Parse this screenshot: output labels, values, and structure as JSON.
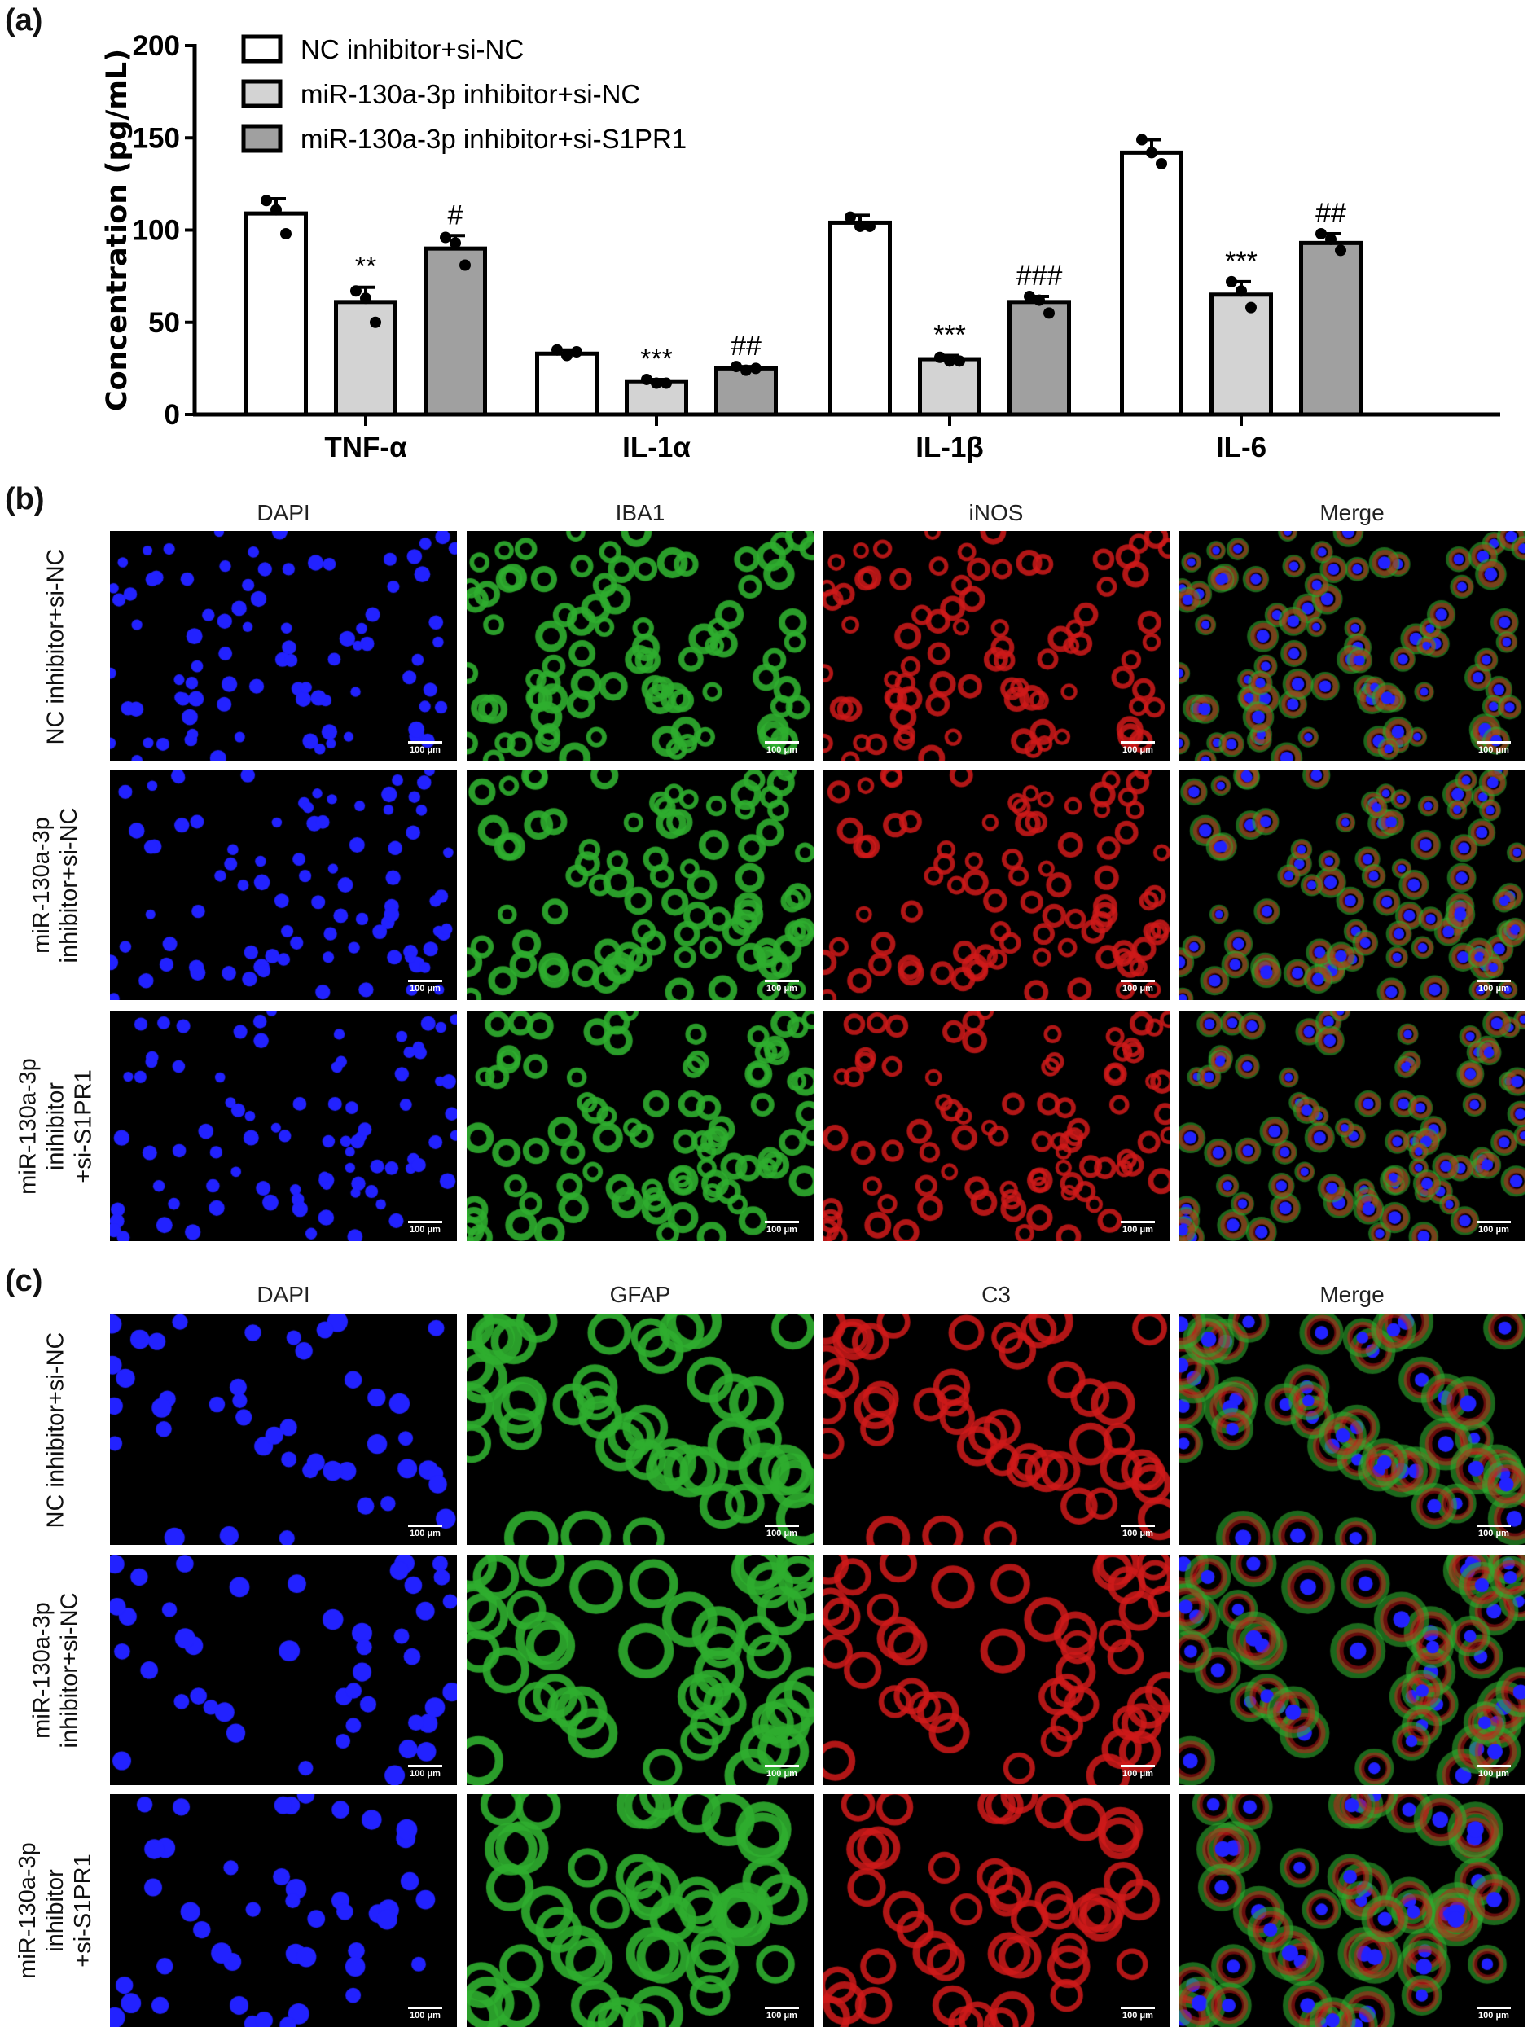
{
  "panels": {
    "a": "(a)",
    "b": "(b)",
    "c": "(c)"
  },
  "chart_data": {
    "type": "bar",
    "title": "",
    "xlabel": "",
    "ylabel": "Concentration (pg/mL)",
    "ylim": [
      0,
      200
    ],
    "yticks": [
      "0",
      "50",
      "100",
      "150",
      "200"
    ],
    "grid": false,
    "legend_position": "top-left",
    "categories": [
      "TNF-α",
      "IL-1α",
      "IL-1β",
      "IL-6"
    ],
    "series": [
      {
        "name": "NC inhibitor+si-NC",
        "color": "#ffffff",
        "values": [
          109,
          33,
          104,
          142
        ],
        "error": [
          8,
          2,
          4,
          7
        ],
        "points": [
          [
            116,
            111,
            98
          ],
          [
            35,
            32,
            34
          ],
          [
            107,
            102,
            102
          ],
          [
            149,
            142,
            136
          ]
        ],
        "significance": [
          "",
          "",
          "",
          ""
        ]
      },
      {
        "name": "miR-130a-3p inhibitor+si-NC",
        "color": "#d3d3d3",
        "values": [
          61,
          18,
          30,
          65
        ],
        "error": [
          8,
          1,
          2,
          7
        ],
        "points": [
          [
            67,
            63,
            50
          ],
          [
            19,
            17,
            17
          ],
          [
            31,
            29,
            29
          ],
          [
            72,
            67,
            58
          ]
        ],
        "significance": [
          "**",
          "***",
          "***",
          "***"
        ]
      },
      {
        "name": "miR-130a-3p inhibitor+si-S1PR1",
        "color": "#a0a0a0",
        "values": [
          90,
          25,
          61,
          93
        ],
        "error": [
          7,
          1,
          3,
          5
        ],
        "points": [
          [
            96,
            93,
            81
          ],
          [
            26,
            24,
            25
          ],
          [
            64,
            62,
            55
          ],
          [
            98,
            95,
            89
          ]
        ],
        "significance": [
          "#",
          "##",
          "###",
          "##"
        ]
      }
    ]
  },
  "microscopy_b": {
    "columns": [
      "DAPI",
      "IBA1",
      "iNOS",
      "Merge"
    ],
    "rows": [
      "NC inhibitor+si-NC",
      "miR-130a-3p\ninhibitor+si-NC",
      "miR-130a-3p\ninihibitor\n+si-S1PR1"
    ],
    "scale_bar": "100 μm"
  },
  "microscopy_c": {
    "columns": [
      "DAPI",
      "GFAP",
      "C3",
      "Merge"
    ],
    "rows": [
      "NC inhibitor+si-NC",
      "miR-130a-3p\ninhibitor+si-NC",
      "miR-130a-3p\ninhibitor\n+si-S1PR1"
    ],
    "scale_bar": "100 μm"
  },
  "channel_colors": {
    "dapi": "#2222ff",
    "green": "#2fae2f",
    "red": "#d01a1a"
  }
}
